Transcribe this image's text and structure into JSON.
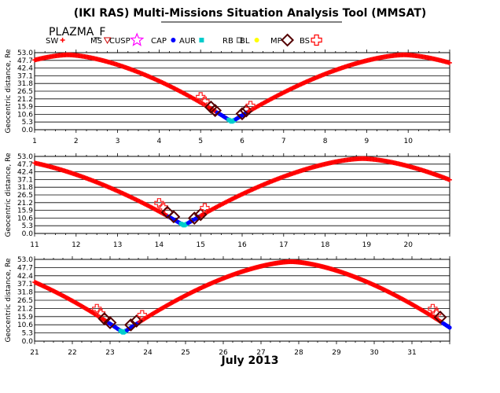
{
  "title": "(IKI RAS) Multi-Missions Situation Analysis Tool (MMSAT)",
  "mission": "PLAZMA_F",
  "month_label": "July 2013",
  "ylabel": "Geocentric distance, Re",
  "legend": [
    {
      "label": "SW",
      "symbol": "plus-small",
      "color": "#ff0000"
    },
    {
      "label": "MS",
      "symbol": "triangle-down",
      "color": "#cc0000"
    },
    {
      "label": "CUSP",
      "symbol": "star",
      "color": "#ff00ff"
    },
    {
      "label": "CAP",
      "symbol": "dot",
      "color": "#0000ff"
    },
    {
      "label": "AUR",
      "symbol": "square-filled",
      "color": "#00cccc"
    },
    {
      "label": "RB",
      "symbol": "square-open",
      "color": "#777777"
    },
    {
      "label": "BL",
      "symbol": "dot",
      "color": "#ffff00"
    },
    {
      "label": "MP",
      "symbol": "diamond",
      "color": "#550000"
    },
    {
      "label": "BS",
      "symbol": "cross",
      "color": "#ff0000"
    }
  ],
  "chart_data": [
    {
      "type": "scatter",
      "xlabel": "",
      "ylabel": "Geocentric distance, Re",
      "xlim": [
        1,
        11
      ],
      "ylim": [
        0,
        53
      ],
      "x_ticks": [
        1,
        2,
        3,
        4,
        5,
        6,
        7,
        8,
        9,
        10
      ],
      "y_ticks": [
        "0.0",
        "5.3",
        "10.6",
        "15.9",
        "21.2",
        "26.5",
        "31.8",
        "37.1",
        "42.4",
        "47.7",
        "53.0"
      ],
      "orbit": {
        "apogee_x": 1.8,
        "apogee_r": 51.5,
        "perigee_x": 5.75,
        "perigee_r": 5.5,
        "next_apogee_x": 9.9
      },
      "boundary_markers": [
        {
          "type": "BS",
          "x": 5.0,
          "r": 22.5
        },
        {
          "type": "BS",
          "x": 5.1,
          "r": 19.5
        },
        {
          "type": "MP",
          "x": 5.25,
          "r": 15.5
        },
        {
          "type": "MP",
          "x": 5.35,
          "r": 13.2
        },
        {
          "type": "MP",
          "x": 6.0,
          "r": 11.0
        },
        {
          "type": "MP",
          "x": 6.1,
          "r": 13.0
        },
        {
          "type": "BS",
          "x": 6.2,
          "r": 16.5
        }
      ]
    },
    {
      "type": "scatter",
      "xlabel": "",
      "ylabel": "Geocentric distance, Re",
      "xlim": [
        11,
        21
      ],
      "ylim": [
        0,
        53
      ],
      "x_ticks": [
        11,
        12,
        13,
        14,
        15,
        16,
        17,
        18,
        19,
        20
      ],
      "y_ticks": [
        "0.0",
        "5.3",
        "10.6",
        "15.9",
        "21.2",
        "26.5",
        "31.8",
        "37.1",
        "42.4",
        "47.7",
        "53.0"
      ],
      "orbit": {
        "apogee_x": 10.2,
        "apogee_r": 51.5,
        "perigee_x": 14.6,
        "perigee_r": 5.5,
        "next_apogee_x": 18.9
      },
      "boundary_markers": [
        {
          "type": "BS",
          "x": 14.0,
          "r": 21.0
        },
        {
          "type": "BS",
          "x": 14.1,
          "r": 18.0
        },
        {
          "type": "MP",
          "x": 14.2,
          "r": 14.5
        },
        {
          "type": "MP",
          "x": 14.35,
          "r": 11.5
        },
        {
          "type": "MP",
          "x": 14.85,
          "r": 10.5
        },
        {
          "type": "MP",
          "x": 15.0,
          "r": 13.0
        },
        {
          "type": "BS",
          "x": 15.1,
          "r": 17.5
        }
      ]
    },
    {
      "type": "scatter",
      "xlabel": "July 2013",
      "ylabel": "Geocentric distance, Re",
      "xlim": [
        21,
        32
      ],
      "ylim": [
        0,
        53
      ],
      "x_ticks": [
        21,
        22,
        23,
        24,
        25,
        26,
        27,
        28,
        29,
        30,
        31
      ],
      "y_ticks": [
        "0.0",
        "5.3",
        "10.6",
        "15.9",
        "21.2",
        "26.5",
        "31.8",
        "37.1",
        "42.4",
        "47.7",
        "53.0"
      ],
      "orbit": {
        "apogee_x": 19.0,
        "apogee_r": 51.5,
        "perigee_x": 23.35,
        "perigee_r": 5.5,
        "next_apogee_x": 27.8,
        "next_perigee_x": 32.2
      },
      "boundary_markers": [
        {
          "type": "BS",
          "x": 22.65,
          "r": 21.0
        },
        {
          "type": "BS",
          "x": 22.75,
          "r": 18.0
        },
        {
          "type": "MP",
          "x": 22.85,
          "r": 14.5
        },
        {
          "type": "MP",
          "x": 23.0,
          "r": 12.0
        },
        {
          "type": "MP",
          "x": 23.55,
          "r": 10.5
        },
        {
          "type": "MP",
          "x": 23.7,
          "r": 13.0
        },
        {
          "type": "BS",
          "x": 23.85,
          "r": 17.0
        },
        {
          "type": "BS",
          "x": 31.55,
          "r": 21.0
        },
        {
          "type": "BS",
          "x": 31.65,
          "r": 18.0
        },
        {
          "type": "MP",
          "x": 31.75,
          "r": 15.5
        }
      ]
    }
  ]
}
